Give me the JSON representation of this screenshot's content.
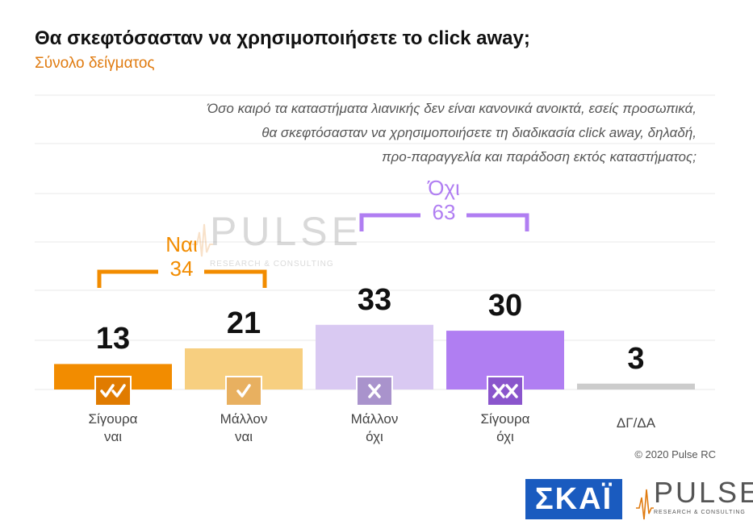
{
  "title": "Θα σκεφτόσασταν να χρησιμοποιήσετε το click away;",
  "subtitle": "Σύνολο δείγματος",
  "question_lines": [
    "Όσο καιρό τα καταστήματα λιανικής δεν είναι κανονικά ανοικτά, εσείς προσωπικά,",
    "θα σκεφτόσασταν να χρησιμοποιήσετε τη διαδικασία click away, δηλαδή,",
    "προ-παραγγελία και παράδοση εκτός καταστήματος;"
  ],
  "groups": [
    {
      "label": "Ναι",
      "value": "34",
      "color": "#f28c00"
    },
    {
      "label": "Όχι",
      "value": "63",
      "color": "#b07ef2"
    }
  ],
  "colors": {
    "sigoura_nai": "#f28c00",
    "mallon_nai": "#f7cf80",
    "mallon_oxi": "#d9c9f2",
    "sigoura_oxi": "#b07ef2",
    "dk_da": "#cccccc",
    "badge_sigoura_nai": "#e07b00",
    "badge_mallon_nai": "#e8b060",
    "badge_mallon_oxi": "#a993cc",
    "badge_sigoura_oxi": "#8a55cc",
    "grid": "#e8e8e8"
  },
  "chart_data": {
    "type": "bar",
    "categories": [
      [
        "Σίγουρα",
        "ναι"
      ],
      [
        "Μάλλον",
        "ναι"
      ],
      [
        "Μάλλον",
        "όχι"
      ],
      [
        "Σίγουρα",
        "όχι"
      ],
      [
        "ΔΓ/ΔΑ"
      ]
    ],
    "values": [
      13,
      21,
      33,
      30,
      3
    ],
    "value_labels": [
      "13",
      "21",
      "33",
      "30",
      "3"
    ],
    "badges": [
      "check-double",
      "check",
      "cross",
      "cross-double",
      ""
    ],
    "ylim": [
      0,
      100
    ],
    "grid": true,
    "legend": "none"
  },
  "copyright": "© 2020 Pulse RC",
  "logos": {
    "skai": "ΣΚΑΪ",
    "pulse": "PULSE",
    "pulse_tagline": "RESEARCH & CONSULTING"
  }
}
